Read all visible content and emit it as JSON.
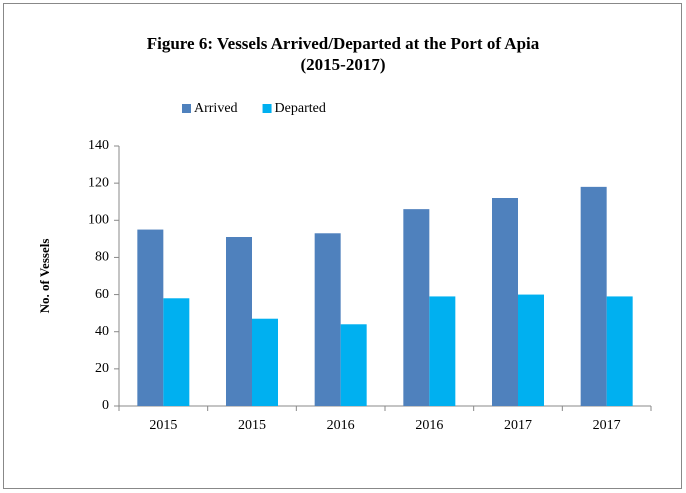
{
  "chart_data": {
    "type": "bar",
    "title": [
      "Figure 6: Vessels Arrived/Departed at the Port of Apia",
      "(2015-2017)"
    ],
    "y_label": "No. of Vessels",
    "categories": [
      "2015",
      "2015",
      "2016",
      "2016",
      "2017",
      "2017"
    ],
    "series": [
      {
        "name": "Arrived",
        "color": "#4f81bd",
        "values": [
          95,
          91,
          93,
          106,
          112,
          118
        ]
      },
      {
        "name": "Departed",
        "color": "#00b0f0",
        "values": [
          58,
          47,
          44,
          59,
          60,
          59
        ]
      }
    ],
    "ylim": [
      0,
      140
    ],
    "yticks": [
      0,
      20,
      40,
      60,
      80,
      100,
      120,
      140
    ],
    "legend": "top"
  }
}
